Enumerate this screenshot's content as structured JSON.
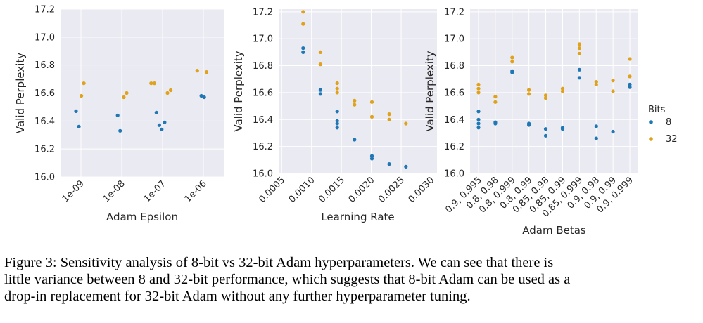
{
  "figure": {
    "bits_legend": {
      "title": "Bits",
      "entries": [
        {
          "label": "8",
          "color": "#1f77b4"
        },
        {
          "label": "32",
          "color": "#dfa21a"
        }
      ]
    },
    "panel_background": "#eaeaf2",
    "grid_color": "#ffffff"
  },
  "chart_data": [
    {
      "type": "scatter",
      "title": "",
      "xlabel": "Adam Epsilon",
      "ylabel": "Valid Perplexity",
      "x_scale": "categorical",
      "categories": [
        "1e-09",
        "1e-08",
        "1e-07",
        "1e-06"
      ],
      "ylim": [
        16.0,
        17.2
      ],
      "yticks": [
        "16.0",
        "16.2",
        "16.4",
        "16.6",
        "16.8",
        "17.0",
        "17.2"
      ],
      "grid": true,
      "series": [
        {
          "name": "8",
          "color": "#1f77b4",
          "points": [
            {
              "x": "1e-09",
              "offset": -0.12,
              "y": 16.47
            },
            {
              "x": "1e-09",
              "offset": -0.05,
              "y": 16.36
            },
            {
              "x": "1e-08",
              "offset": -0.1,
              "y": 16.44
            },
            {
              "x": "1e-08",
              "offset": -0.04,
              "y": 16.33
            },
            {
              "x": "1e-07",
              "offset": -0.15,
              "y": 16.46
            },
            {
              "x": "1e-07",
              "offset": -0.08,
              "y": 16.37
            },
            {
              "x": "1e-07",
              "offset": -0.02,
              "y": 16.34
            },
            {
              "x": "1e-07",
              "offset": 0.05,
              "y": 16.39
            },
            {
              "x": "1e-06",
              "offset": -0.05,
              "y": 16.58
            },
            {
              "x": "1e-06",
              "offset": 0.02,
              "y": 16.57
            }
          ]
        },
        {
          "name": "32",
          "color": "#dfa21a",
          "points": [
            {
              "x": "1e-09",
              "offset": 0.01,
              "y": 16.58
            },
            {
              "x": "1e-09",
              "offset": 0.07,
              "y": 16.67
            },
            {
              "x": "1e-08",
              "offset": 0.05,
              "y": 16.57
            },
            {
              "x": "1e-08",
              "offset": 0.12,
              "y": 16.6
            },
            {
              "x": "1e-07",
              "offset": -0.28,
              "y": 16.67
            },
            {
              "x": "1e-07",
              "offset": -0.2,
              "y": 16.67
            },
            {
              "x": "1e-07",
              "offset": 0.12,
              "y": 16.6
            },
            {
              "x": "1e-07",
              "offset": 0.2,
              "y": 16.62
            },
            {
              "x": "1e-06",
              "offset": -0.15,
              "y": 16.76
            },
            {
              "x": "1e-06",
              "offset": 0.08,
              "y": 16.75
            }
          ]
        }
      ]
    },
    {
      "type": "scatter",
      "title": "",
      "xlabel": "Learning Rate",
      "ylabel": "Valid Perplexity",
      "x_scale": "linear",
      "xlim": [
        0.00045,
        0.0031
      ],
      "xticks": [
        0.0005,
        0.001,
        0.0015,
        0.002,
        0.0025,
        0.003
      ],
      "xtick_labels": [
        "0.0005",
        "0.0010",
        "0.0015",
        "0.0020",
        "0.0025",
        "0.0030"
      ],
      "ylim": [
        16.0,
        17.22
      ],
      "yticks": [
        "16.0",
        "16.2",
        "16.4",
        "16.6",
        "16.8",
        "17.0",
        "17.2"
      ],
      "grid": true,
      "series": [
        {
          "name": "8",
          "color": "#1f77b4",
          "points": [
            {
              "x": 0.00086,
              "y": 16.93
            },
            {
              "x": 0.00086,
              "y": 16.9
            },
            {
              "x": 0.00115,
              "y": 16.62
            },
            {
              "x": 0.00115,
              "y": 16.59
            },
            {
              "x": 0.00143,
              "y": 16.46
            },
            {
              "x": 0.00143,
              "y": 16.39
            },
            {
              "x": 0.00143,
              "y": 16.37
            },
            {
              "x": 0.00143,
              "y": 16.34
            },
            {
              "x": 0.00172,
              "y": 16.25
            },
            {
              "x": 0.00201,
              "y": 16.13
            },
            {
              "x": 0.00201,
              "y": 16.11
            },
            {
              "x": 0.0023,
              "y": 16.07
            },
            {
              "x": 0.00258,
              "y": 16.05
            }
          ]
        },
        {
          "name": "32",
          "color": "#dfa21a",
          "points": [
            {
              "x": 0.00086,
              "y": 17.2
            },
            {
              "x": 0.00086,
              "y": 17.11
            },
            {
              "x": 0.00115,
              "y": 16.9
            },
            {
              "x": 0.00115,
              "y": 16.81
            },
            {
              "x": 0.00143,
              "y": 16.67
            },
            {
              "x": 0.00143,
              "y": 16.63
            },
            {
              "x": 0.00143,
              "y": 16.6
            },
            {
              "x": 0.00172,
              "y": 16.54
            },
            {
              "x": 0.00172,
              "y": 16.51
            },
            {
              "x": 0.00201,
              "y": 16.53
            },
            {
              "x": 0.00201,
              "y": 16.42
            },
            {
              "x": 0.0023,
              "y": 16.44
            },
            {
              "x": 0.0023,
              "y": 16.4
            },
            {
              "x": 0.00258,
              "y": 16.37
            }
          ]
        }
      ]
    },
    {
      "type": "scatter",
      "title": "",
      "xlabel": "Adam Betas",
      "ylabel": "Valid Perplexity",
      "x_scale": "categorical",
      "categories": [
        "0.9, 0.995",
        "0.8, 0.98",
        "0.8, 0.999",
        "0.8, 0.99",
        "0.85, 0.98",
        "0.85, 0.99",
        "0.85, 0.999",
        "0.9, 0.98",
        "0.9, 0.99",
        "0.9, 0.999"
      ],
      "ylim": [
        16.0,
        17.22
      ],
      "yticks": [
        "16.0",
        "16.2",
        "16.4",
        "16.6",
        "16.8",
        "17.0",
        "17.2"
      ],
      "grid": true,
      "legend": "right",
      "series": [
        {
          "name": "8",
          "color": "#1f77b4",
          "points": [
            {
              "x": "0.9, 0.995",
              "y": 16.46
            },
            {
              "x": "0.9, 0.995",
              "y": 16.4
            },
            {
              "x": "0.9, 0.995",
              "y": 16.37
            },
            {
              "x": "0.9, 0.995",
              "y": 16.34
            },
            {
              "x": "0.8, 0.98",
              "y": 16.38
            },
            {
              "x": "0.8, 0.98",
              "y": 16.37
            },
            {
              "x": "0.8, 0.999",
              "y": 16.76
            },
            {
              "x": "0.8, 0.999",
              "y": 16.75
            },
            {
              "x": "0.8, 0.99",
              "y": 16.37
            },
            {
              "x": "0.8, 0.99",
              "y": 16.36
            },
            {
              "x": "0.85, 0.98",
              "y": 16.33
            },
            {
              "x": "0.85, 0.98",
              "y": 16.28
            },
            {
              "x": "0.85, 0.99",
              "y": 16.34
            },
            {
              "x": "0.85, 0.99",
              "y": 16.33
            },
            {
              "x": "0.85, 0.999",
              "y": 16.77
            },
            {
              "x": "0.85, 0.999",
              "y": 16.71
            },
            {
              "x": "0.9, 0.98",
              "y": 16.35
            },
            {
              "x": "0.9, 0.98",
              "y": 16.26
            },
            {
              "x": "0.9, 0.99",
              "y": 16.31
            },
            {
              "x": "0.9, 0.999",
              "y": 16.66
            },
            {
              "x": "0.9, 0.999",
              "y": 16.64
            }
          ]
        },
        {
          "name": "32",
          "color": "#dfa21a",
          "points": [
            {
              "x": "0.9, 0.995",
              "y": 16.66
            },
            {
              "x": "0.9, 0.995",
              "y": 16.63
            },
            {
              "x": "0.9, 0.995",
              "y": 16.6
            },
            {
              "x": "0.8, 0.98",
              "y": 16.57
            },
            {
              "x": "0.8, 0.98",
              "y": 16.53
            },
            {
              "x": "0.8, 0.999",
              "y": 16.86
            },
            {
              "x": "0.8, 0.999",
              "y": 16.83
            },
            {
              "x": "0.8, 0.99",
              "y": 16.62
            },
            {
              "x": "0.8, 0.99",
              "y": 16.59
            },
            {
              "x": "0.85, 0.98",
              "y": 16.58
            },
            {
              "x": "0.85, 0.98",
              "y": 16.56
            },
            {
              "x": "0.85, 0.99",
              "y": 16.63
            },
            {
              "x": "0.85, 0.99",
              "y": 16.61
            },
            {
              "x": "0.85, 0.999",
              "y": 16.96
            },
            {
              "x": "0.85, 0.999",
              "y": 16.93
            },
            {
              "x": "0.85, 0.999",
              "y": 16.89
            },
            {
              "x": "0.9, 0.98",
              "y": 16.68
            },
            {
              "x": "0.9, 0.98",
              "y": 16.66
            },
            {
              "x": "0.9, 0.99",
              "y": 16.69
            },
            {
              "x": "0.9, 0.99",
              "y": 16.61
            },
            {
              "x": "0.9, 0.999",
              "y": 16.85
            },
            {
              "x": "0.9, 0.999",
              "y": 16.72
            }
          ]
        }
      ]
    }
  ],
  "caption": {
    "lines": [
      "Figure 3: Sensitivity analysis of 8-bit vs 32-bit Adam hyperparameters. We can see that there is",
      "little variance between 8 and 32-bit performance, which suggests that 8-bit Adam can be used as a",
      "drop-in replacement for 32-bit Adam without any further hyperparameter tuning."
    ]
  }
}
